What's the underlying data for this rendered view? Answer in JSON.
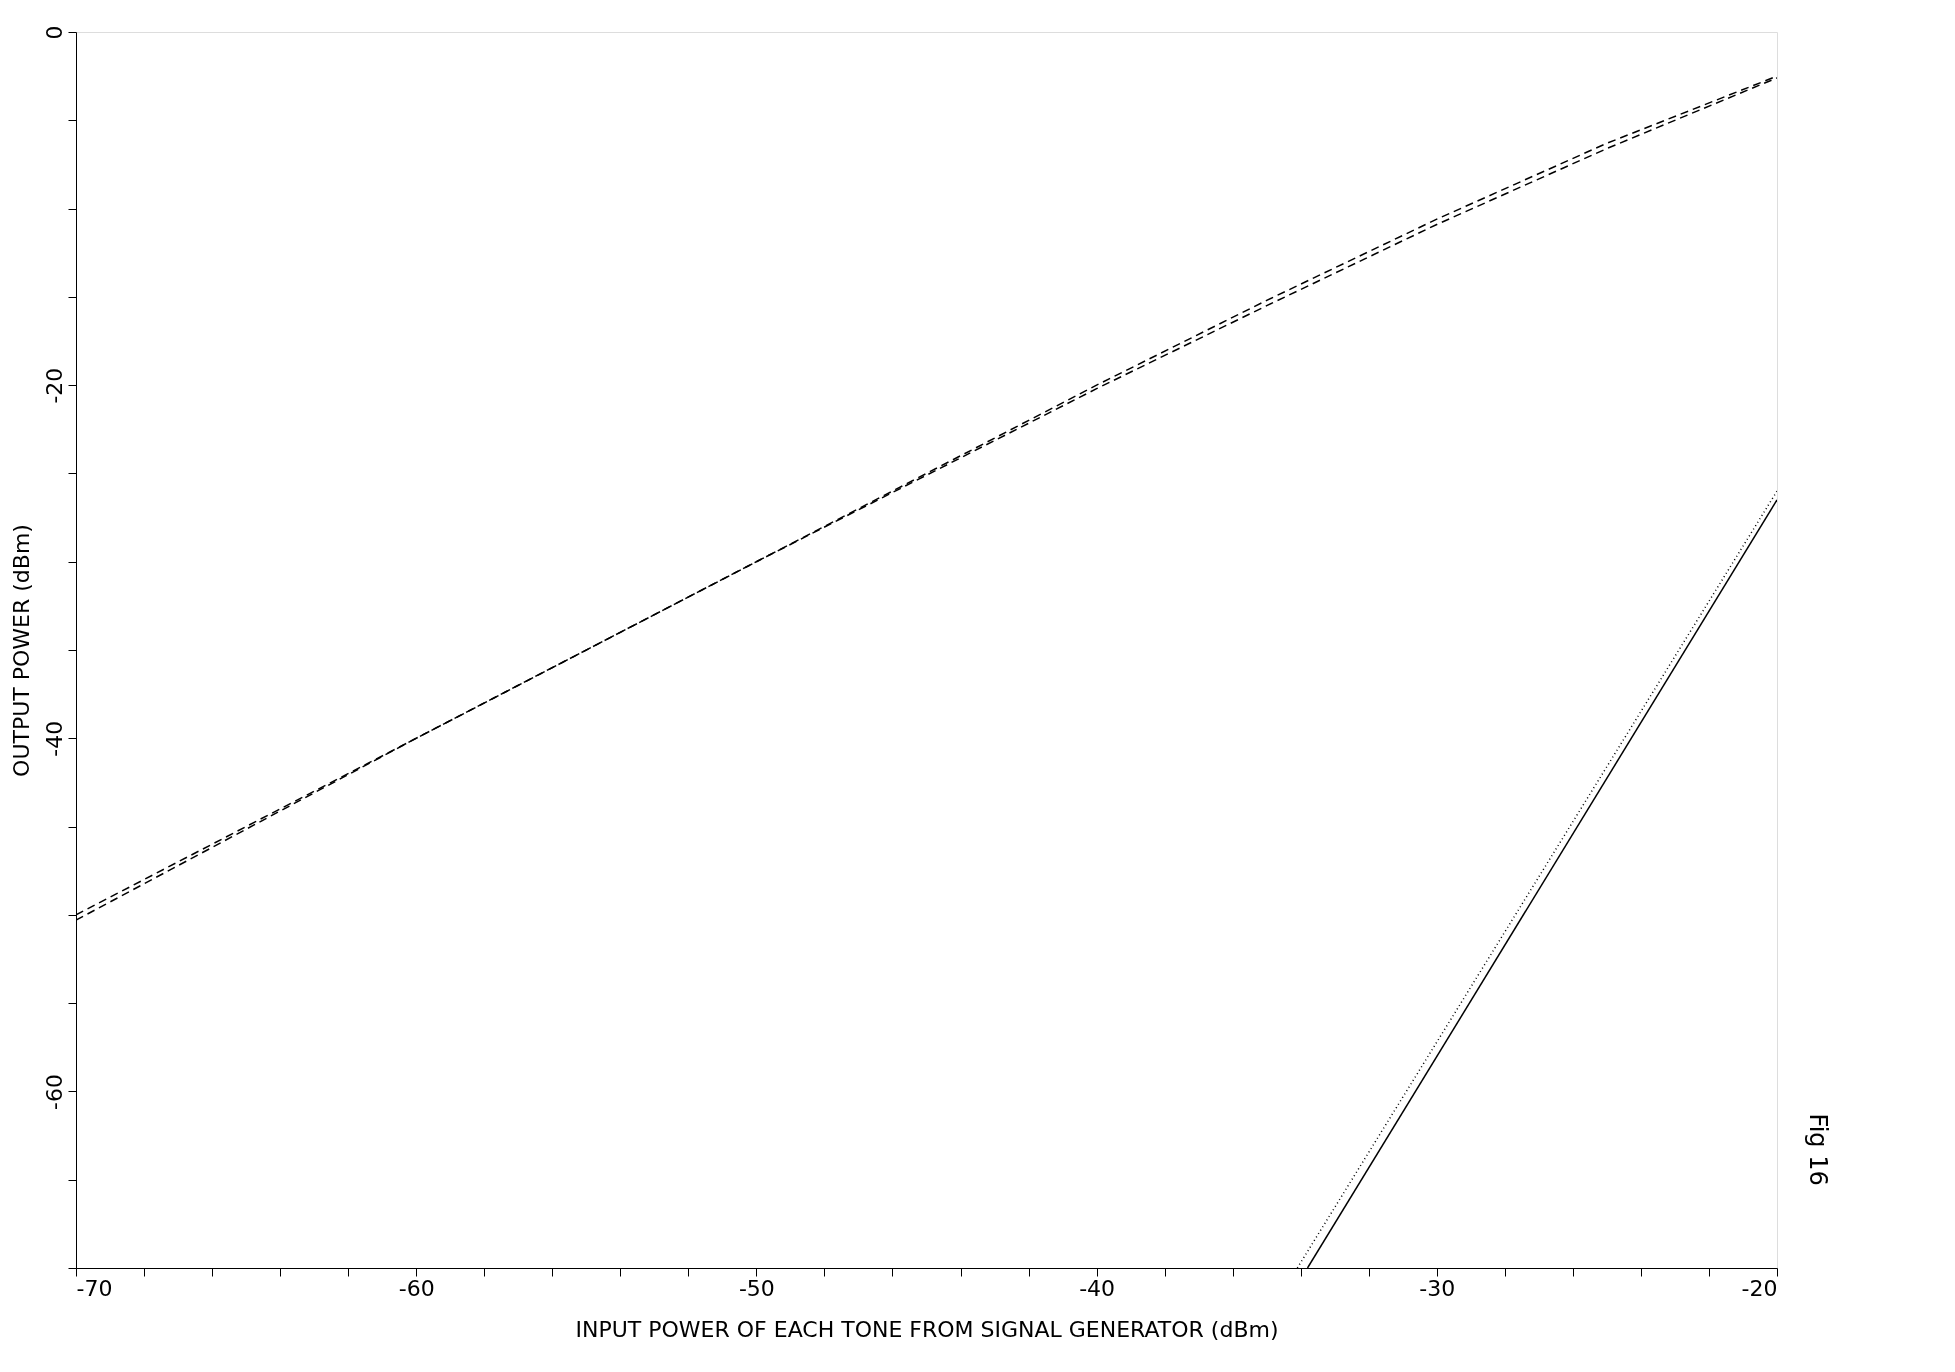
{
  "chart_data": {
    "type": "line",
    "xlabel": "INPUT POWER OF EACH TONE FROM SIGNAL GENERATOR (dBm)",
    "ylabel": "OUTPUT POWER (dBm)",
    "xlim": [
      -70,
      -20
    ],
    "ylim": [
      -70,
      0
    ],
    "xticks": [
      -70,
      {
        "value": -68,
        "label": null
      },
      {
        "value": -66,
        "label": null
      },
      {
        "value": -64,
        "label": null
      },
      {
        "value": -62,
        "label": null
      },
      -60,
      {
        "value": -58,
        "label": null
      },
      {
        "value": -56,
        "label": null
      },
      {
        "value": -54,
        "label": null
      },
      {
        "value": -52,
        "label": null
      },
      -50,
      {
        "value": -48,
        "label": null
      },
      {
        "value": -46,
        "label": null
      },
      {
        "value": -44,
        "label": null
      },
      {
        "value": -42,
        "label": null
      },
      -40,
      {
        "value": -38,
        "label": null
      },
      {
        "value": -36,
        "label": null
      },
      {
        "value": -34,
        "label": null
      },
      {
        "value": -32,
        "label": null
      },
      -30,
      {
        "value": -28,
        "label": null
      },
      {
        "value": -26,
        "label": null
      },
      {
        "value": -24,
        "label": null
      },
      {
        "value": -22,
        "label": null
      },
      -20
    ],
    "yticks": [
      {
        "value": -70,
        "label": null
      },
      {
        "value": -65,
        "label": null
      },
      -60,
      {
        "value": -55,
        "label": null
      },
      {
        "value": -50,
        "label": null
      },
      {
        "value": -45,
        "label": null
      },
      -40,
      {
        "value": -35,
        "label": null
      },
      {
        "value": -30,
        "label": null
      },
      {
        "value": -25,
        "label": null
      },
      -20,
      {
        "value": -15,
        "label": null
      },
      {
        "value": -10,
        "label": null
      },
      {
        "value": -5,
        "label": null
      },
      0
    ],
    "grid": false,
    "marker": "none",
    "series": [
      {
        "color": "#000000",
        "line_style": "dashed",
        "x": [
          -70,
          -60,
          -50,
          -40,
          -35,
          -30,
          -25,
          -20
        ],
        "values": [
          -50,
          -40,
          -30,
          -20,
          -15.2,
          -10.6,
          -6.3,
          -2.5
        ]
      },
      {
        "color": "#000000",
        "line_style": "dashed",
        "x": [
          -70,
          -60,
          -50,
          -40,
          -35,
          -30,
          -25,
          -20
        ],
        "values": [
          -50.3,
          -40,
          -30,
          -20.2,
          -15.5,
          -10.9,
          -6.6,
          -2.6
        ]
      },
      {
        "color": "#000000",
        "line_style": "solid",
        "x": [
          -33.8,
          -20
        ],
        "values": [
          -70,
          -26.5
        ]
      },
      {
        "color": "#000000",
        "line_style": "dotted",
        "x": [
          -34.1,
          -20
        ],
        "values": [
          -70,
          -26
        ]
      }
    ],
    "annotations": [
      "Fig 16"
    ]
  }
}
